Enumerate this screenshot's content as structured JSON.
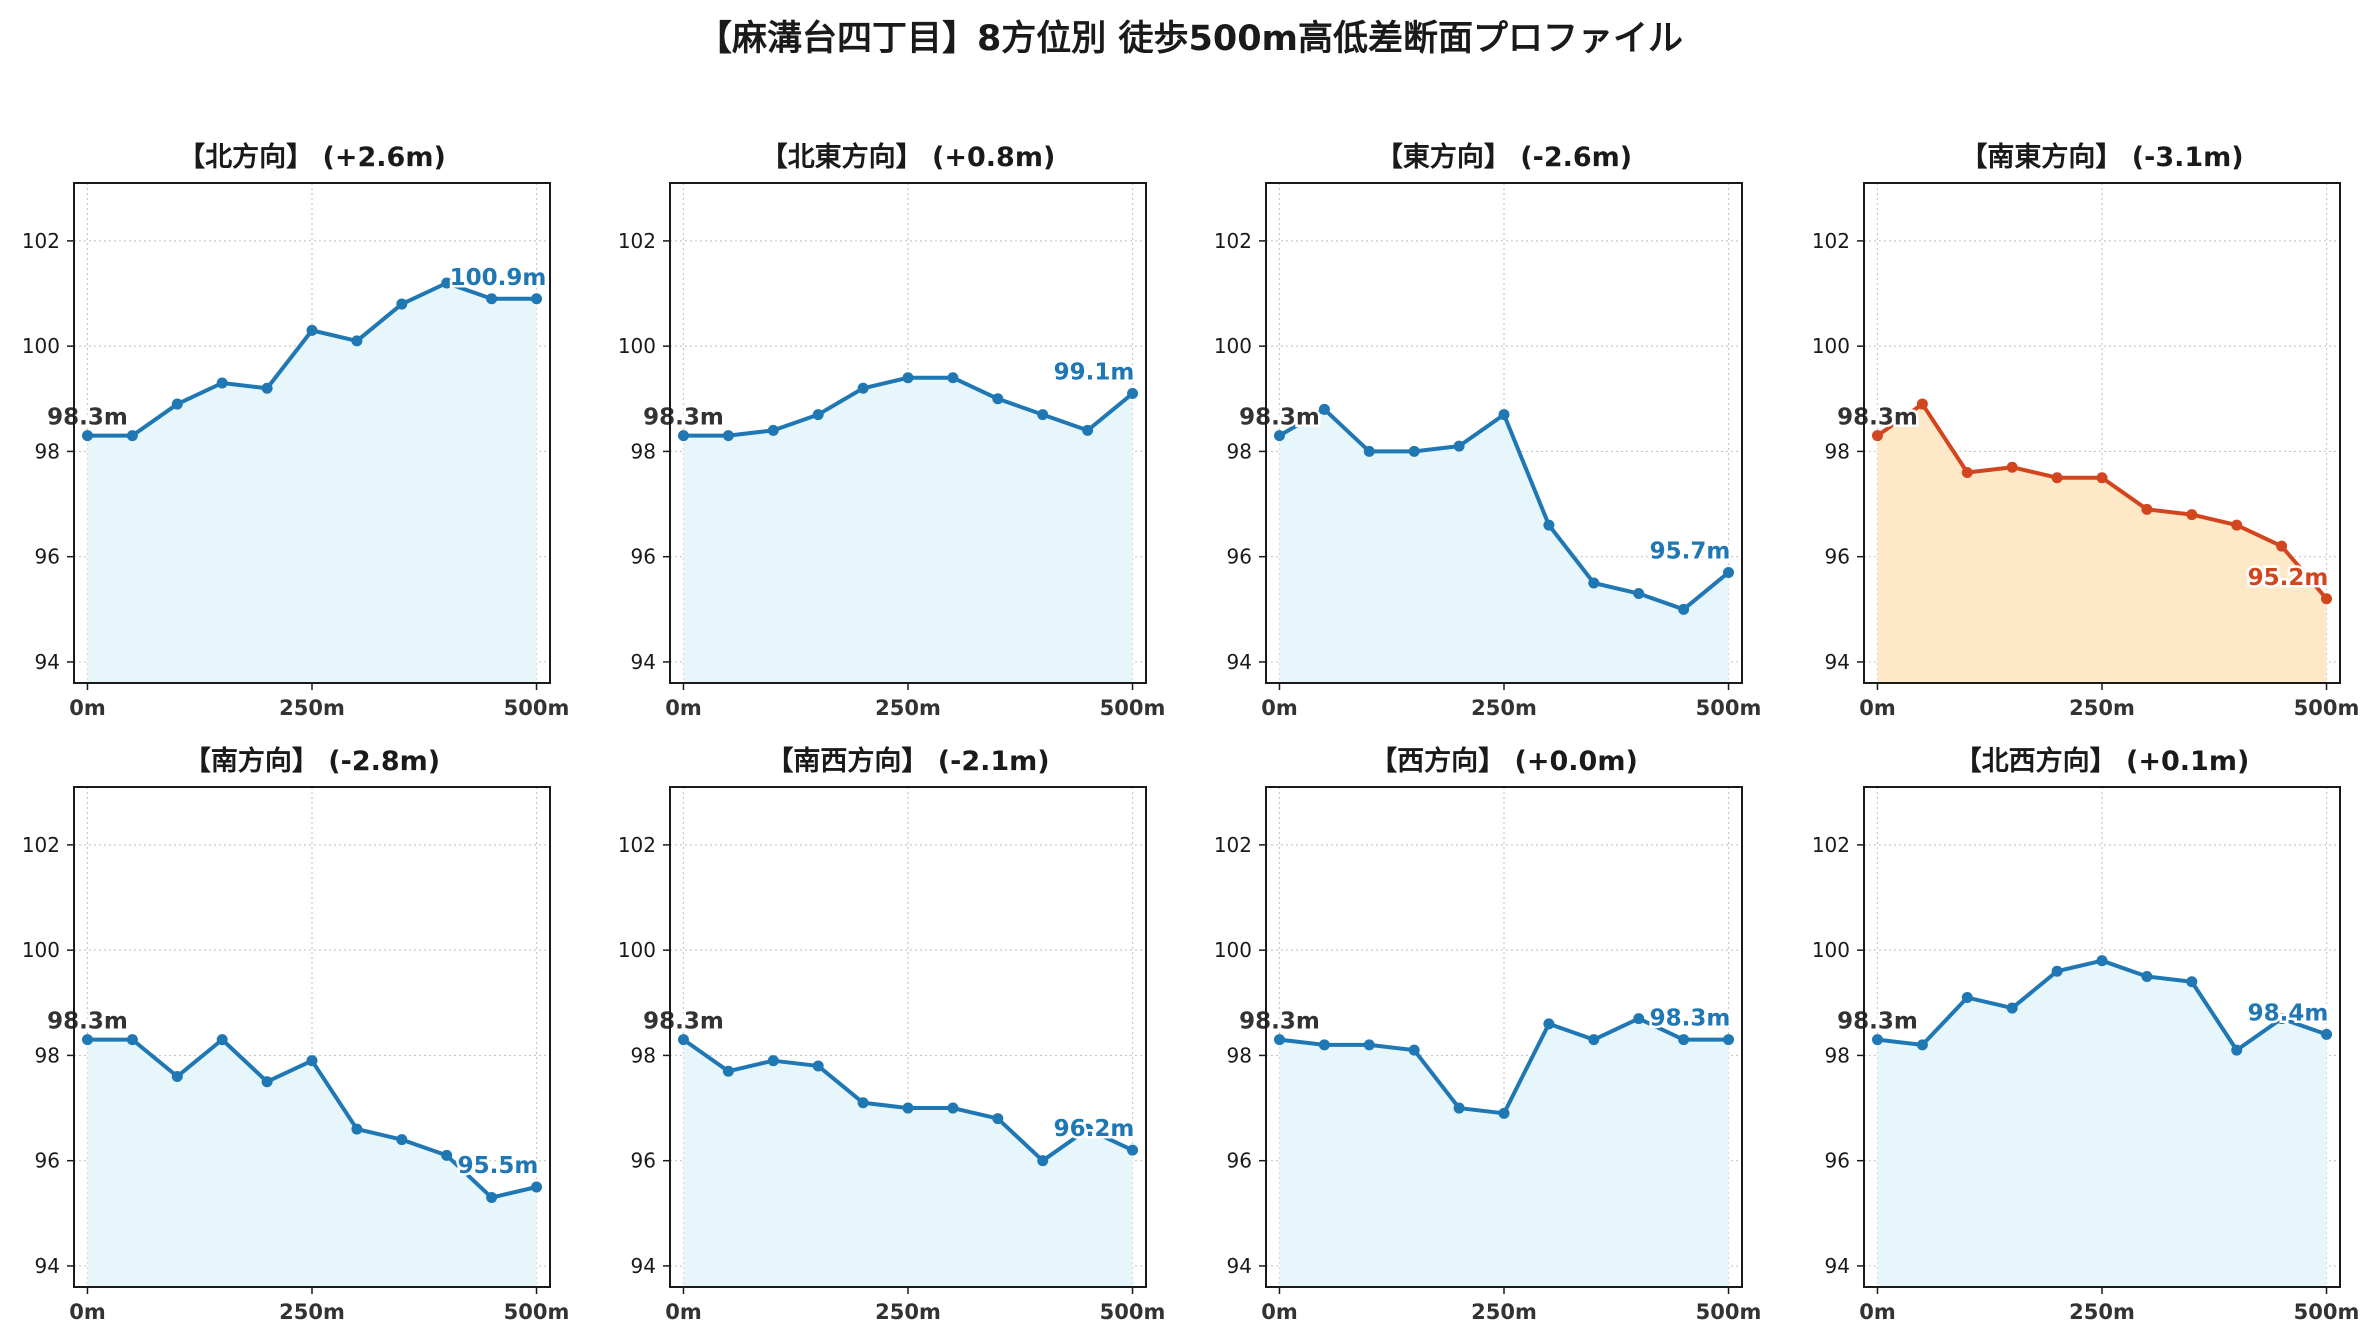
{
  "title": "【麻溝台四丁目】8方位別 徒歩500m高低差断面プロファイル",
  "colors": {
    "normal_line": "#1f77b4",
    "normal_fill": "#e6f6fb",
    "highlight_line": "#d2451e",
    "highlight_fill": "#fde8c8",
    "start_label": "#333333"
  },
  "chart_data": [
    {
      "type": "line",
      "title": "【北方向】 (+2.6m)",
      "highlight": false,
      "x": [
        0,
        50,
        100,
        150,
        200,
        250,
        300,
        350,
        400,
        450,
        500
      ],
      "y": [
        98.3,
        98.3,
        98.9,
        99.3,
        99.2,
        100.3,
        100.1,
        100.8,
        101.2,
        100.9,
        100.9
      ],
      "start_label": "98.3m",
      "end_label": "100.9m",
      "xticks": [
        "0m",
        "250m",
        "500m"
      ],
      "xtick_values": [
        0,
        250,
        500
      ],
      "yticks": [
        94,
        96,
        98,
        100,
        102
      ],
      "xlim": [
        -15,
        515
      ],
      "ylim": [
        93.6,
        103.1
      ],
      "grid": true
    },
    {
      "type": "line",
      "title": "【北東方向】 (+0.8m)",
      "highlight": false,
      "x": [
        0,
        50,
        100,
        150,
        200,
        250,
        300,
        350,
        400,
        450,
        500
      ],
      "y": [
        98.3,
        98.3,
        98.4,
        98.7,
        99.2,
        99.4,
        99.4,
        99.0,
        98.7,
        98.4,
        99.1
      ],
      "start_label": "98.3m",
      "end_label": "99.1m",
      "xticks": [
        "0m",
        "250m",
        "500m"
      ],
      "xtick_values": [
        0,
        250,
        500
      ],
      "yticks": [
        94,
        96,
        98,
        100,
        102
      ],
      "xlim": [
        -15,
        515
      ],
      "ylim": [
        93.6,
        103.1
      ],
      "grid": true
    },
    {
      "type": "line",
      "title": "【東方向】 (-2.6m)",
      "highlight": false,
      "x": [
        0,
        50,
        100,
        150,
        200,
        250,
        300,
        350,
        400,
        450,
        500
      ],
      "y": [
        98.3,
        98.8,
        98.0,
        98.0,
        98.1,
        98.7,
        96.6,
        95.5,
        95.3,
        95.0,
        95.7
      ],
      "start_label": "98.3m",
      "end_label": "95.7m",
      "xticks": [
        "0m",
        "250m",
        "500m"
      ],
      "xtick_values": [
        0,
        250,
        500
      ],
      "yticks": [
        94,
        96,
        98,
        100,
        102
      ],
      "xlim": [
        -15,
        515
      ],
      "ylim": [
        93.6,
        103.1
      ],
      "grid": true
    },
    {
      "type": "line",
      "title": "【南東方向】 (-3.1m)",
      "highlight": true,
      "x": [
        0,
        50,
        100,
        150,
        200,
        250,
        300,
        350,
        400,
        450,
        500
      ],
      "y": [
        98.3,
        98.9,
        97.6,
        97.7,
        97.5,
        97.5,
        96.9,
        96.8,
        96.6,
        96.2,
        95.2
      ],
      "start_label": "98.3m",
      "end_label": "95.2m",
      "xticks": [
        "0m",
        "250m",
        "500m"
      ],
      "xtick_values": [
        0,
        250,
        500
      ],
      "yticks": [
        94,
        96,
        98,
        100,
        102
      ],
      "xlim": [
        -15,
        515
      ],
      "ylim": [
        93.6,
        103.1
      ],
      "grid": true
    },
    {
      "type": "line",
      "title": "【南方向】 (-2.8m)",
      "highlight": false,
      "x": [
        0,
        50,
        100,
        150,
        200,
        250,
        300,
        350,
        400,
        450,
        500
      ],
      "y": [
        98.3,
        98.3,
        97.6,
        98.3,
        97.5,
        97.9,
        96.6,
        96.4,
        96.1,
        95.3,
        95.5
      ],
      "start_label": "98.3m",
      "end_label": "95.5m",
      "xticks": [
        "0m",
        "250m",
        "500m"
      ],
      "xtick_values": [
        0,
        250,
        500
      ],
      "yticks": [
        94,
        96,
        98,
        100,
        102
      ],
      "xlim": [
        -15,
        515
      ],
      "ylim": [
        93.6,
        103.1
      ],
      "grid": true
    },
    {
      "type": "line",
      "title": "【南西方向】 (-2.1m)",
      "highlight": false,
      "x": [
        0,
        50,
        100,
        150,
        200,
        250,
        300,
        350,
        400,
        450,
        500
      ],
      "y": [
        98.3,
        97.7,
        97.9,
        97.8,
        97.1,
        97.0,
        97.0,
        96.8,
        96.0,
        96.6,
        96.2
      ],
      "start_label": "98.3m",
      "end_label": "96.2m",
      "xticks": [
        "0m",
        "250m",
        "500m"
      ],
      "xtick_values": [
        0,
        250,
        500
      ],
      "yticks": [
        94,
        96,
        98,
        100,
        102
      ],
      "xlim": [
        -15,
        515
      ],
      "ylim": [
        93.6,
        103.1
      ],
      "grid": true
    },
    {
      "type": "line",
      "title": "【西方向】 (+0.0m)",
      "highlight": false,
      "x": [
        0,
        50,
        100,
        150,
        200,
        250,
        300,
        350,
        400,
        450,
        500
      ],
      "y": [
        98.3,
        98.2,
        98.2,
        98.1,
        97.0,
        96.9,
        98.6,
        98.3,
        98.7,
        98.3,
        98.3
      ],
      "start_label": "98.3m",
      "end_label": "98.3m",
      "xticks": [
        "0m",
        "250m",
        "500m"
      ],
      "xtick_values": [
        0,
        250,
        500
      ],
      "yticks": [
        94,
        96,
        98,
        100,
        102
      ],
      "xlim": [
        -15,
        515
      ],
      "ylim": [
        93.6,
        103.1
      ],
      "grid": true
    },
    {
      "type": "line",
      "title": "【北西方向】 (+0.1m)",
      "highlight": false,
      "x": [
        0,
        50,
        100,
        150,
        200,
        250,
        300,
        350,
        400,
        450,
        500
      ],
      "y": [
        98.3,
        98.2,
        99.1,
        98.9,
        99.6,
        99.8,
        99.5,
        99.4,
        98.1,
        98.7,
        98.4
      ],
      "start_label": "98.3m",
      "end_label": "98.4m",
      "xticks": [
        "0m",
        "250m",
        "500m"
      ],
      "xtick_values": [
        0,
        250,
        500
      ],
      "yticks": [
        94,
        96,
        98,
        100,
        102
      ],
      "xlim": [
        -15,
        515
      ],
      "ylim": [
        93.6,
        103.1
      ],
      "grid": true
    }
  ]
}
